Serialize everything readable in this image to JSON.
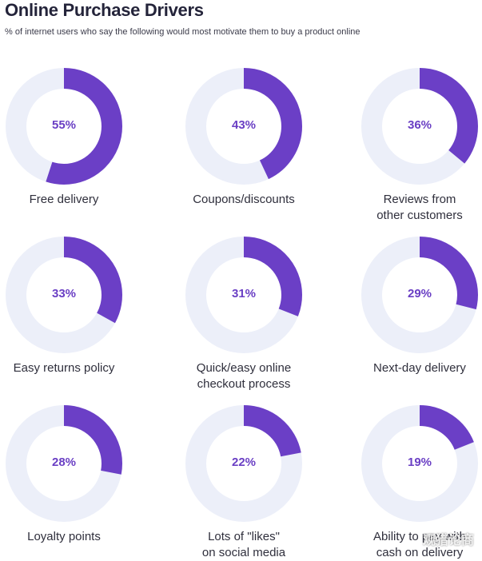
{
  "chart_data": {
    "type": "pie",
    "title": "Online Purchase Drivers",
    "subtitle": "% of internet users who say the following would most motivate them to buy a product online",
    "categories": [
      "Free delivery",
      "Coupons/discounts",
      "Reviews from\nother customers",
      "Easy returns policy",
      "Quick/easy online\ncheckout process",
      "Next-day delivery",
      "Loyalty points",
      "Lots of \"likes\"\non social media",
      "Ability to pay with\ncash on delivery"
    ],
    "values": [
      55,
      43,
      36,
      33,
      31,
      29,
      28,
      22,
      19
    ],
    "value_labels": [
      "55%",
      "43%",
      "36%",
      "33%",
      "31%",
      "29%",
      "28%",
      "22%",
      "19%"
    ],
    "unit": "%",
    "max": 100
  },
  "colors": {
    "accent": "#6b3fc6",
    "track": "#eceff9",
    "value_text": "#6a3fc4"
  },
  "watermark": "观猎论商"
}
